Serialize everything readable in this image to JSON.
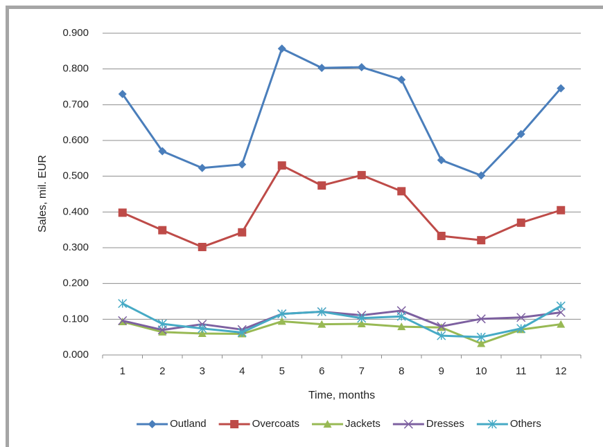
{
  "chart_data": {
    "type": "line",
    "x_label": "Time, months",
    "y_label": "Sales, mil. EUR",
    "categories": [
      1,
      2,
      3,
      4,
      5,
      6,
      7,
      8,
      9,
      10,
      11,
      12
    ],
    "series": [
      {
        "name": "Outland",
        "color": "#4a7ebb",
        "marker": "diamond",
        "values": [
          0.73,
          0.57,
          0.523,
          0.533,
          0.857,
          0.803,
          0.805,
          0.77,
          0.545,
          0.502,
          0.618,
          0.746
        ]
      },
      {
        "name": "Overcoats",
        "color": "#be4b48",
        "marker": "square",
        "values": [
          0.398,
          0.349,
          0.302,
          0.343,
          0.53,
          0.474,
          0.503,
          0.458,
          0.333,
          0.321,
          0.37,
          0.405
        ]
      },
      {
        "name": "Jackets",
        "color": "#98b954",
        "marker": "triangle",
        "values": [
          0.093,
          0.064,
          0.06,
          0.059,
          0.094,
          0.086,
          0.087,
          0.079,
          0.077,
          0.032,
          0.071,
          0.086
        ]
      },
      {
        "name": "Dresses",
        "color": "#7d60a0",
        "marker": "x",
        "values": [
          0.096,
          0.07,
          0.086,
          0.071,
          0.115,
          0.121,
          0.111,
          0.124,
          0.08,
          0.101,
          0.105,
          0.119
        ]
      },
      {
        "name": "Others",
        "color": "#46aac5",
        "marker": "asterisk",
        "values": [
          0.144,
          0.087,
          0.074,
          0.063,
          0.115,
          0.121,
          0.103,
          0.108,
          0.054,
          0.05,
          0.074,
          0.137
        ]
      }
    ],
    "ylim": [
      0,
      0.9
    ],
    "yticks": [
      {
        "value": 0,
        "label": "0.000"
      },
      {
        "value": 0.1,
        "label": "0.100"
      },
      {
        "value": 0.2,
        "label": "0.200"
      },
      {
        "value": 0.3,
        "label": "0.300"
      },
      {
        "value": 0.4,
        "label": "0.400"
      },
      {
        "value": 0.5,
        "label": "0.500"
      },
      {
        "value": 0.6,
        "label": "0.600"
      },
      {
        "value": 0.7,
        "label": "0.700"
      },
      {
        "value": 0.8,
        "label": "0.800"
      },
      {
        "value": 0.9,
        "label": "0.900"
      }
    ],
    "grid": true,
    "legend": "bottom"
  }
}
